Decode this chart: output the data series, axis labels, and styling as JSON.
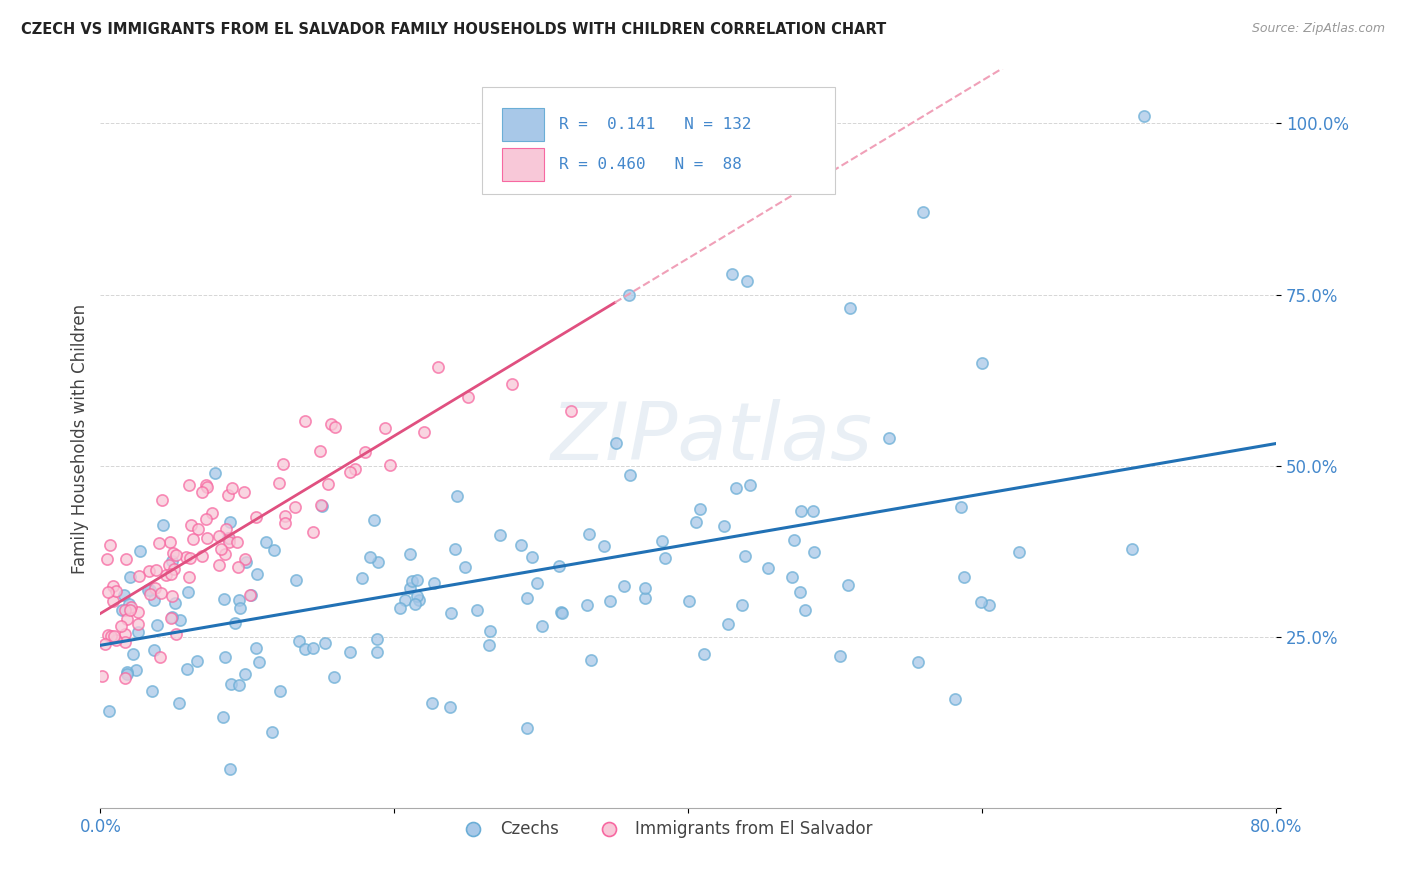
{
  "title": "CZECH VS IMMIGRANTS FROM EL SALVADOR FAMILY HOUSEHOLDS WITH CHILDREN CORRELATION CHART",
  "source": "Source: ZipAtlas.com",
  "ylabel": "Family Households with Children",
  "ytick_labels": [
    "",
    "25.0%",
    "50.0%",
    "75.0%",
    "100.0%"
  ],
  "ytick_values": [
    0.0,
    0.25,
    0.5,
    0.75,
    1.0
  ],
  "xlim": [
    0.0,
    0.8
  ],
  "ylim": [
    0.0,
    1.08
  ],
  "blue_color": "#a8c8e8",
  "blue_edge_color": "#6baed6",
  "pink_color": "#f8c8d8",
  "pink_edge_color": "#f768a1",
  "blue_line_color": "#2171b5",
  "pink_line_color": "#e05080",
  "pink_dash_color": "#f0a0b8",
  "watermark": "ZIPatlas",
  "background_color": "#ffffff",
  "grid_color": "#bbbbbb",
  "legend_r1": "R =  0.141",
  "legend_n1": "N = 132",
  "legend_r2": "R = 0.460",
  "legend_n2": "N =  88",
  "axis_color": "#4488cc",
  "title_color": "#222222",
  "source_color": "#999999"
}
